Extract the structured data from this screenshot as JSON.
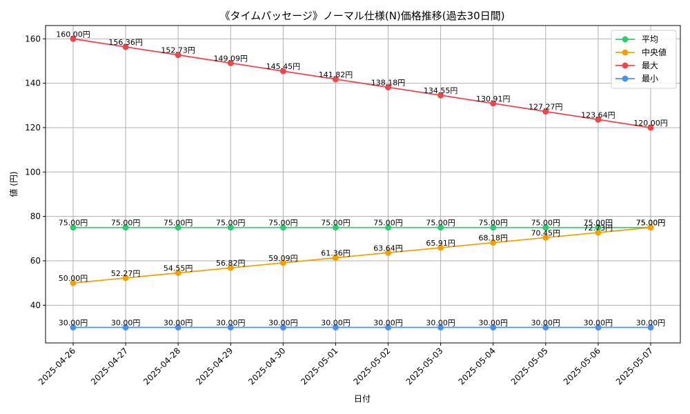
{
  "chart_data": {
    "type": "line",
    "title": "《タイムパッセージ》ノーマル仕様(N)価格推移(過去30日間)",
    "xlabel": "日付",
    "ylabel": "値 (円)",
    "categories": [
      "2025-04-26",
      "2025-04-27",
      "2025-04-28",
      "2025-04-29",
      "2025-04-30",
      "2025-05-01",
      "2025-05-02",
      "2025-05-03",
      "2025-05-04",
      "2025-05-05",
      "2025-05-06",
      "2025-05-07"
    ],
    "ylim": [
      23,
      166
    ],
    "yticks": [
      40,
      60,
      80,
      100,
      120,
      140,
      160
    ],
    "grid": true,
    "legend_position": "top-right",
    "value_suffix": "円",
    "series": [
      {
        "name": "平均",
        "color": "#2ecc71",
        "values": [
          75,
          75,
          75,
          75,
          75,
          75,
          75,
          75,
          75,
          75,
          75,
          75
        ]
      },
      {
        "name": "中央値",
        "color": "#f5a000",
        "values": [
          50,
          52.27,
          54.55,
          56.82,
          59.09,
          61.36,
          63.64,
          65.91,
          68.18,
          70.45,
          72.73,
          75
        ]
      },
      {
        "name": "最大",
        "color": "#f0454b",
        "values": [
          160,
          156.36,
          152.73,
          149.09,
          145.45,
          141.82,
          138.18,
          134.55,
          130.91,
          127.27,
          123.64,
          120
        ]
      },
      {
        "name": "最小",
        "color": "#4a90f0",
        "values": [
          30,
          30,
          30,
          30,
          30,
          30,
          30,
          30,
          30,
          30,
          30,
          30
        ]
      }
    ]
  }
}
